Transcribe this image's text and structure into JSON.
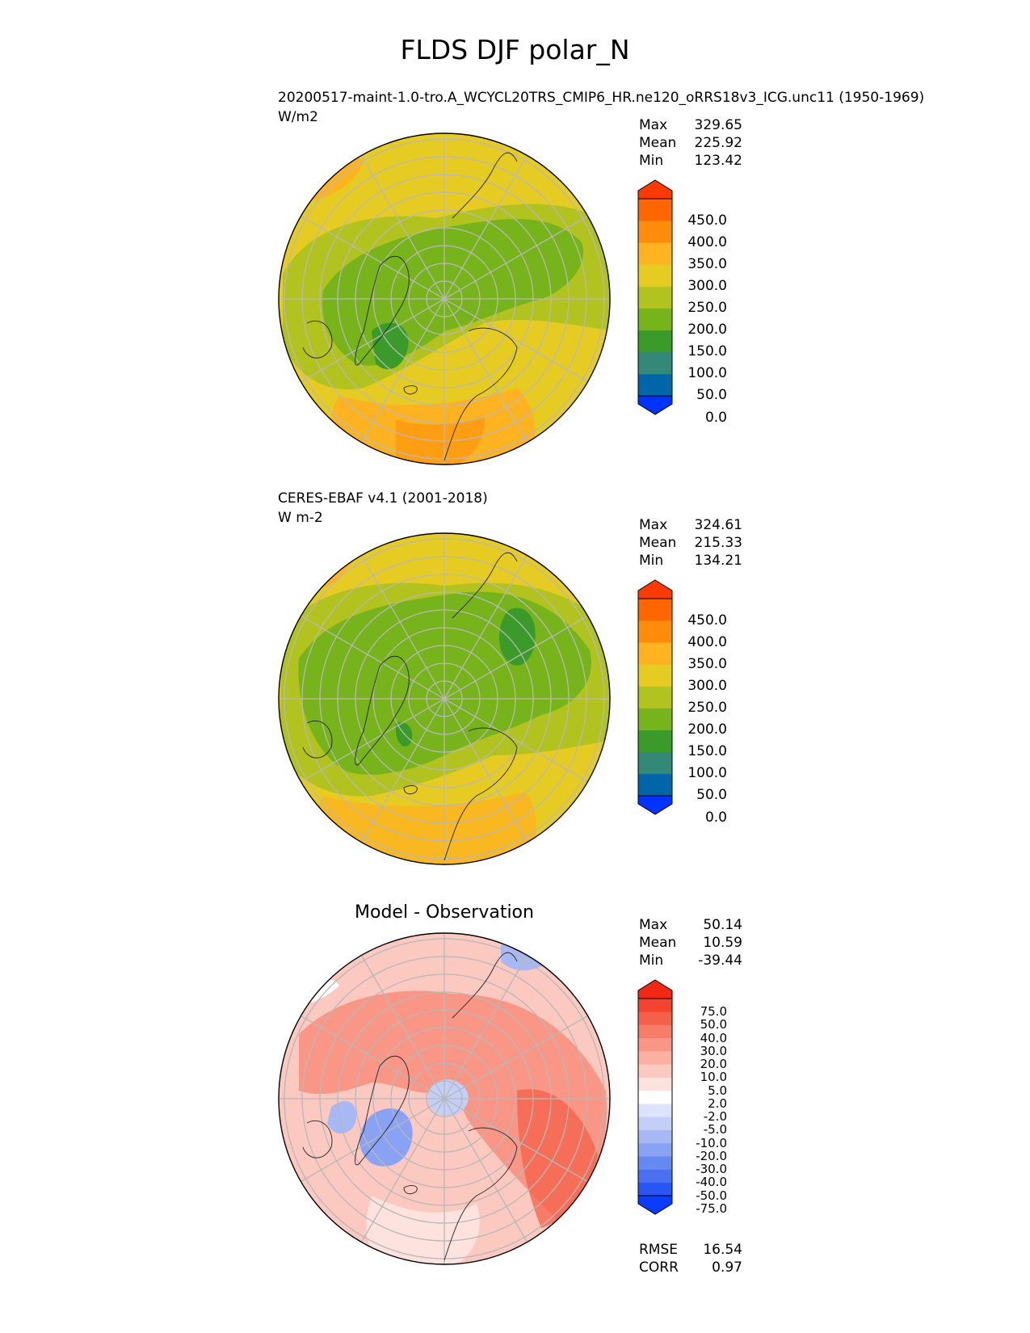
{
  "figure": {
    "title": "FLDS DJF polar_N"
  },
  "panels": [
    {
      "id": "test",
      "title_line1": "20200517-maint-1.0-tro.A_WCYCL20TRS_CMIP6_HR.ne120_oRRS18v3_ICG.unc11 (1950-1969)",
      "title_line2": "W/m2",
      "stats": [
        {
          "label": "Max",
          "value": "329.65"
        },
        {
          "label": "Mean",
          "value": "225.92"
        },
        {
          "label": "Min",
          "value": "123.42"
        }
      ],
      "colorbar": {
        "labels": [
          "450.0",
          "400.0",
          "350.0",
          "300.0",
          "250.0",
          "200.0",
          "150.0",
          "100.0",
          "50.0",
          "0.0"
        ],
        "colors": [
          "#0033ff",
          "#0066aa",
          "#338877",
          "#3a9a2a",
          "#77b31a",
          "#b2c21e",
          "#e6cc22",
          "#ffb320",
          "#ff8c0a",
          "#ff6600",
          "#ff3a00"
        ]
      }
    },
    {
      "id": "ref",
      "title_line1": "CERES-EBAF v4.1 (2001-2018)",
      "title_line2": "W m-2",
      "stats": [
        {
          "label": "Max",
          "value": "324.61"
        },
        {
          "label": "Mean",
          "value": "215.33"
        },
        {
          "label": "Min",
          "value": "134.21"
        }
      ],
      "colorbar": {
        "labels": [
          "450.0",
          "400.0",
          "350.0",
          "300.0",
          "250.0",
          "200.0",
          "150.0",
          "100.0",
          "50.0",
          "0.0"
        ],
        "colors": [
          "#0033ff",
          "#0066aa",
          "#338877",
          "#3a9a2a",
          "#77b31a",
          "#b2c21e",
          "#e6cc22",
          "#ffb320",
          "#ff8c0a",
          "#ff6600",
          "#ff3a00"
        ]
      }
    },
    {
      "id": "diff",
      "title_center": "Model - Observation",
      "stats": [
        {
          "label": "Max",
          "value": "50.14"
        },
        {
          "label": "Mean",
          "value": "10.59"
        },
        {
          "label": "Min",
          "value": "-39.44"
        }
      ],
      "metrics": [
        {
          "label": "RMSE",
          "value": "16.54"
        },
        {
          "label": "CORR",
          "value": "0.97"
        }
      ],
      "colorbar": {
        "labels": [
          "75.0",
          "50.0",
          "40.0",
          "30.0",
          "20.0",
          "10.0",
          "5.0",
          "2.0",
          "-2.0",
          "-5.0",
          "-10.0",
          "-20.0",
          "-30.0",
          "-40.0",
          "-50.0",
          "-75.0"
        ],
        "colors": [
          "#0a3cff",
          "#2a55f5",
          "#4a70f0",
          "#6688f0",
          "#8aa2f3",
          "#a8b8f5",
          "#c4cff7",
          "#dde3fa",
          "#ffffff",
          "#fde2de",
          "#fcc9c1",
          "#fbb0a3",
          "#f99685",
          "#f77c68",
          "#f5604a",
          "#f2442e",
          "#f02814"
        ]
      }
    }
  ]
}
